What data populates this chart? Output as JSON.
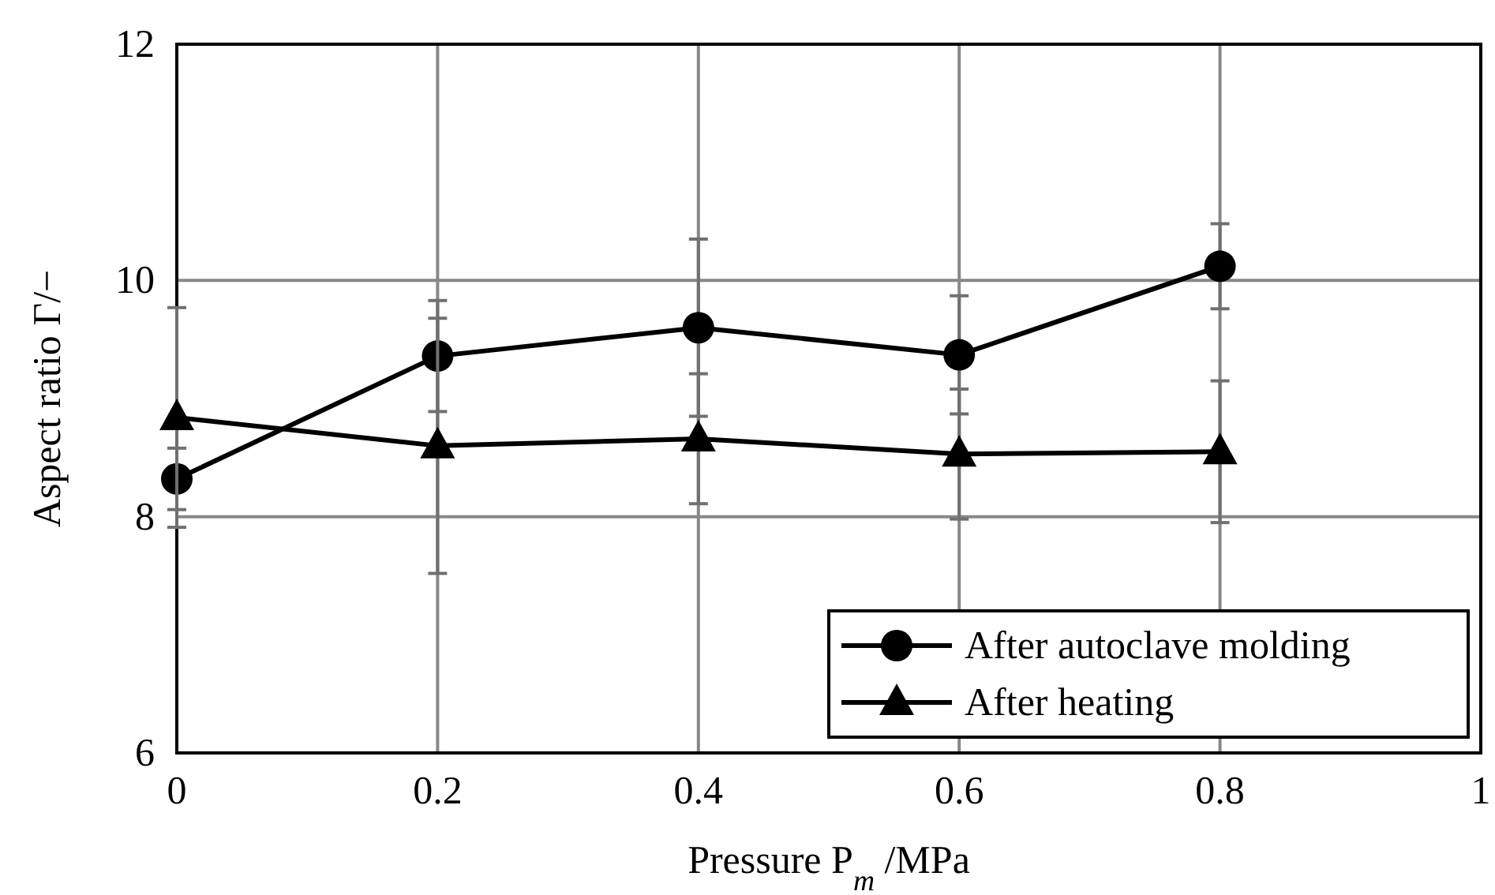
{
  "chart_data": {
    "type": "line",
    "xlabel": "Pressure P$_{m}$ /MPa",
    "ylabel": "Aspect ratio Γ/−",
    "x": [
      0,
      0.2,
      0.4,
      0.6,
      0.8
    ],
    "xlim": [
      0,
      1
    ],
    "xticks": [
      0,
      0.2,
      0.4,
      0.6,
      0.8,
      1
    ],
    "ylim": [
      6,
      12
    ],
    "yticks": [
      6,
      8,
      10,
      12
    ],
    "grid": true,
    "legend": "bottom right",
    "series": [
      {
        "name": "After autoclave molding",
        "color": "#000000",
        "marker": "circle",
        "values": [
          8.32,
          9.36,
          9.6,
          9.37,
          10.12
        ],
        "errors": [
          0.26,
          0.47,
          0.75,
          0.5,
          0.36
        ]
      },
      {
        "name": "After heating",
        "color": "#000000",
        "marker": "triangle",
        "values": [
          8.84,
          8.6,
          8.66,
          8.53,
          8.55
        ],
        "errors": [
          0.93,
          1.08,
          0.55,
          0.55,
          0.6
        ]
      }
    ]
  }
}
